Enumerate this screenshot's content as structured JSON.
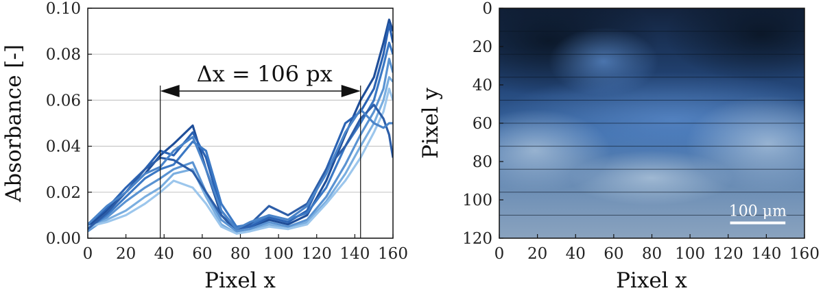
{
  "chart_data": [
    {
      "type": "line",
      "title": "",
      "xlabel": "Pixel x",
      "ylabel": "Absorbance [-]",
      "xlim": [
        0,
        160
      ],
      "ylim": [
        0,
        0.1
      ],
      "xticks": [
        "0",
        "20",
        "40",
        "60",
        "80",
        "100",
        "120",
        "140",
        "160"
      ],
      "yticks": [
        "0.00",
        "0.02",
        "0.04",
        "0.06",
        "0.08",
        "0.10"
      ],
      "grid": "horizontal",
      "annotation": {
        "text": "Δx = 106 px",
        "x_start": 38,
        "x_end": 143,
        "y": 0.064
      },
      "colors": [
        "#1f4e99",
        "#2a62b3",
        "#3b78c4",
        "#5a93d2",
        "#7aaee0",
        "#9cc6ec",
        "#2d5ea8",
        "#4a84c9"
      ],
      "series": [
        {
          "x": [
            0,
            10,
            20,
            30,
            38,
            45,
            55,
            62,
            70,
            78,
            85,
            95,
            105,
            115,
            125,
            135,
            143,
            150,
            155,
            158,
            160
          ],
          "y": [
            0.005,
            0.012,
            0.02,
            0.028,
            0.036,
            0.041,
            0.049,
            0.03,
            0.01,
            0.003,
            0.004,
            0.008,
            0.006,
            0.01,
            0.025,
            0.045,
            0.06,
            0.07,
            0.085,
            0.095,
            0.09
          ]
        },
        {
          "x": [
            0,
            10,
            20,
            30,
            38,
            45,
            55,
            62,
            70,
            78,
            85,
            95,
            105,
            115,
            125,
            135,
            143,
            150,
            155,
            158,
            160
          ],
          "y": [
            0.006,
            0.013,
            0.022,
            0.03,
            0.038,
            0.036,
            0.046,
            0.035,
            0.012,
            0.004,
            0.005,
            0.009,
            0.007,
            0.012,
            0.03,
            0.05,
            0.055,
            0.065,
            0.08,
            0.093,
            0.085
          ]
        },
        {
          "x": [
            0,
            10,
            20,
            30,
            38,
            45,
            55,
            62,
            70,
            78,
            85,
            95,
            105,
            115,
            125,
            135,
            143,
            150,
            155,
            158,
            160
          ],
          "y": [
            0.004,
            0.01,
            0.018,
            0.026,
            0.03,
            0.032,
            0.042,
            0.038,
            0.015,
            0.005,
            0.006,
            0.01,
            0.008,
            0.011,
            0.022,
            0.04,
            0.05,
            0.06,
            0.075,
            0.085,
            0.08
          ]
        },
        {
          "x": [
            0,
            10,
            20,
            30,
            38,
            45,
            55,
            62,
            70,
            78,
            85,
            95,
            105,
            115,
            125,
            135,
            143,
            150,
            155,
            158,
            160
          ],
          "y": [
            0.003,
            0.009,
            0.016,
            0.022,
            0.026,
            0.03,
            0.033,
            0.02,
            0.008,
            0.003,
            0.004,
            0.007,
            0.005,
            0.008,
            0.018,
            0.032,
            0.045,
            0.055,
            0.065,
            0.078,
            0.072
          ]
        },
        {
          "x": [
            0,
            10,
            20,
            30,
            38,
            45,
            55,
            62,
            70,
            78,
            85,
            95,
            105,
            115,
            125,
            135,
            143,
            150,
            155,
            158,
            160
          ],
          "y": [
            0.004,
            0.008,
            0.012,
            0.018,
            0.022,
            0.028,
            0.03,
            0.018,
            0.006,
            0.002,
            0.003,
            0.006,
            0.004,
            0.007,
            0.016,
            0.028,
            0.04,
            0.05,
            0.06,
            0.07,
            0.068
          ]
        },
        {
          "x": [
            0,
            10,
            20,
            30,
            38,
            45,
            55,
            62,
            70,
            78,
            85,
            95,
            105,
            115,
            125,
            135,
            143,
            150,
            155,
            158,
            160
          ],
          "y": [
            0.005,
            0.007,
            0.01,
            0.015,
            0.02,
            0.025,
            0.022,
            0.015,
            0.005,
            0.002,
            0.003,
            0.005,
            0.004,
            0.006,
            0.015,
            0.025,
            0.035,
            0.046,
            0.055,
            0.065,
            0.06
          ]
        },
        {
          "x": [
            0,
            10,
            20,
            30,
            38,
            45,
            55,
            62,
            70,
            78,
            85,
            95,
            105,
            115,
            125,
            135,
            143,
            150,
            155,
            158,
            160
          ],
          "y": [
            0.004,
            0.011,
            0.02,
            0.03,
            0.035,
            0.034,
            0.029,
            0.02,
            0.01,
            0.004,
            0.006,
            0.014,
            0.01,
            0.015,
            0.03,
            0.04,
            0.052,
            0.058,
            0.052,
            0.045,
            0.035
          ]
        },
        {
          "x": [
            0,
            10,
            20,
            30,
            38,
            45,
            55,
            62,
            70,
            78,
            85,
            95,
            105,
            115,
            125,
            135,
            143,
            150,
            155,
            158,
            160
          ],
          "y": [
            0.006,
            0.014,
            0.02,
            0.028,
            0.031,
            0.038,
            0.044,
            0.03,
            0.012,
            0.004,
            0.007,
            0.01,
            0.008,
            0.014,
            0.028,
            0.046,
            0.056,
            0.05,
            0.048,
            0.05,
            0.05
          ]
        }
      ]
    },
    {
      "type": "heatmap",
      "title": "",
      "xlabel": "Pixel y",
      "xlabel_bottom": "Pixel x",
      "ylabel": "Pixel y",
      "xlim": [
        0,
        160
      ],
      "ylim": [
        120,
        0
      ],
      "xticks": [
        "0",
        "20",
        "40",
        "60",
        "80",
        "100",
        "120",
        "140",
        "160"
      ],
      "yticks": [
        "0",
        "20",
        "40",
        "60",
        "80",
        "100",
        "120"
      ],
      "scalebar": {
        "text": "100 μm",
        "x_start": 121,
        "x_end": 150,
        "y": 112
      },
      "colormap": [
        "#0f1d33",
        "#254d86",
        "#5d86b8",
        "#9fb7cf",
        "#3a5f8e"
      ]
    }
  ]
}
